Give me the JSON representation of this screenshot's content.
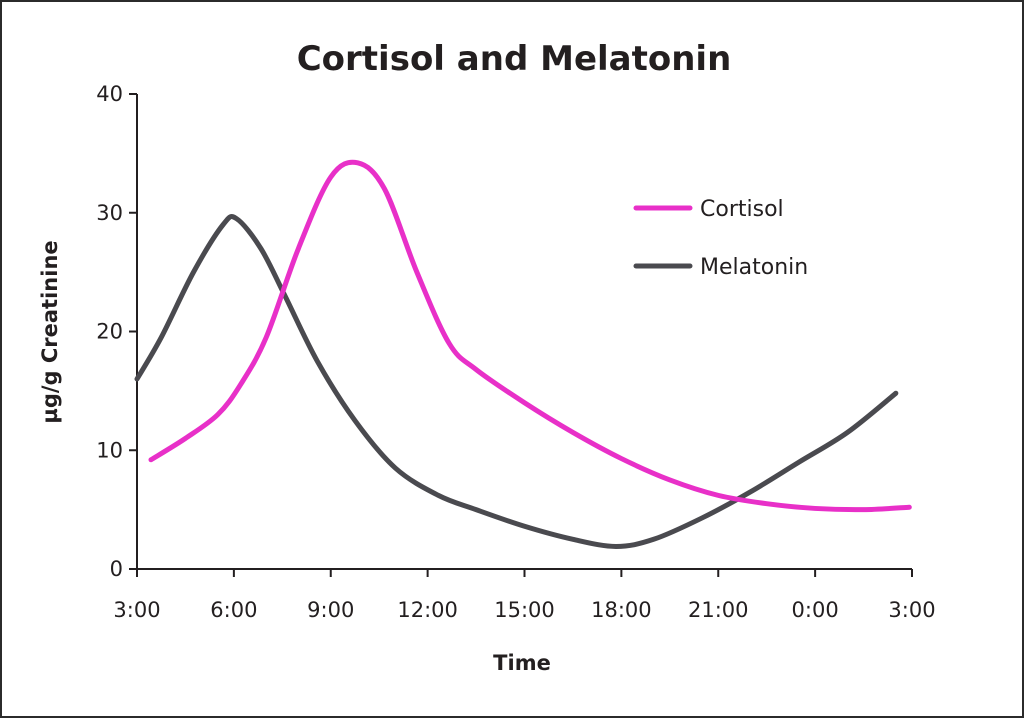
{
  "chart_data": {
    "type": "line",
    "title": "Cortisol and Melatonin",
    "xlabel": "Time",
    "ylabel": "µg/g Creatinine",
    "xlim": [
      0,
      24
    ],
    "ylim": [
      0,
      40
    ],
    "x_tick_labels": [
      "3:00",
      "6:00",
      "9:00",
      "12:00",
      "15:00",
      "18:00",
      "21:00",
      "0:00",
      "3:00"
    ],
    "y_ticks": [
      0,
      10,
      20,
      30,
      40
    ],
    "grid": false,
    "legend_position": "top-right",
    "series": [
      {
        "name": "Cortisol",
        "color": "#e830c8",
        "x": [
          "3:26",
          "4:30",
          "5:30",
          "6:12",
          "7:00",
          "8:00",
          "9:00",
          "9:50",
          "10:40",
          "11:40",
          "12:40",
          "13:30",
          "15:00",
          "16:30",
          "18:00",
          "19:30",
          "21:00",
          "22:30",
          "0:00",
          "1:30",
          "2:55"
        ],
        "y": [
          9.2,
          11,
          13,
          15.5,
          19.5,
          27,
          33,
          34.2,
          32,
          25,
          19,
          16.8,
          14,
          11.5,
          9.3,
          7.5,
          6.2,
          5.5,
          5.1,
          5.0,
          5.2
        ]
      },
      {
        "name": "Melatonin",
        "color": "#4a4a4f",
        "x": [
          "3:00",
          "3:45",
          "4:45",
          "5:40",
          "6:05",
          "6:50",
          "7:35",
          "8:35",
          "9:45",
          "11:00",
          "12:20",
          "13:30",
          "15:00",
          "16:30",
          "17:50",
          "19:00",
          "20:30",
          "22:00",
          "23:30",
          "1:00",
          "2:30"
        ],
        "y": [
          16,
          19.5,
          25,
          29,
          29.5,
          27,
          23,
          17.5,
          12.5,
          8.5,
          6.2,
          5.0,
          3.6,
          2.5,
          1.9,
          2.5,
          4.3,
          6.5,
          9.0,
          11.5,
          14.8
        ]
      }
    ]
  }
}
